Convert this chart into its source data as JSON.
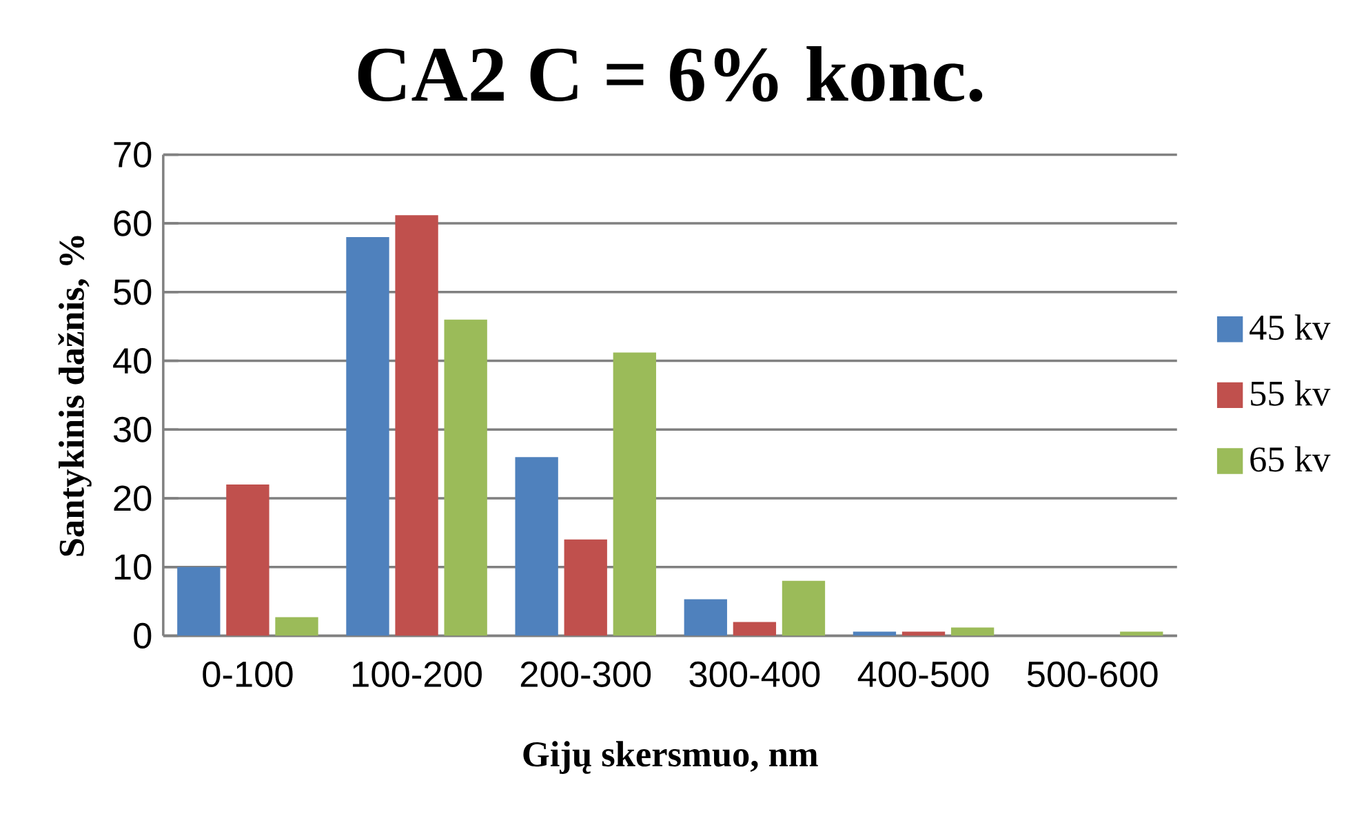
{
  "chart_data": {
    "type": "bar",
    "title": "CA2 C = 6% konc.",
    "xlabel": "Gijų skersmuo, nm",
    "ylabel": "Santykinis dažnis, %",
    "categories": [
      "0-100",
      "100-200",
      "200-300",
      "300-400",
      "400-500",
      "500-600"
    ],
    "series": [
      {
        "name": "45 kv",
        "color": "#4f81bd",
        "values": [
          10,
          58,
          26,
          5.3,
          0.6,
          0
        ]
      },
      {
        "name": "55 kv",
        "color": "#c0504d",
        "values": [
          22,
          61.2,
          14,
          2,
          0.6,
          0
        ]
      },
      {
        "name": "65 kv",
        "color": "#9bbb59",
        "values": [
          2.7,
          46,
          41.2,
          8,
          1.2,
          0.6
        ]
      }
    ],
    "ylim": [
      0,
      70
    ],
    "yticks": [
      0,
      10,
      20,
      30,
      40,
      50,
      60,
      70
    ],
    "grid": "y",
    "legend": "right"
  }
}
